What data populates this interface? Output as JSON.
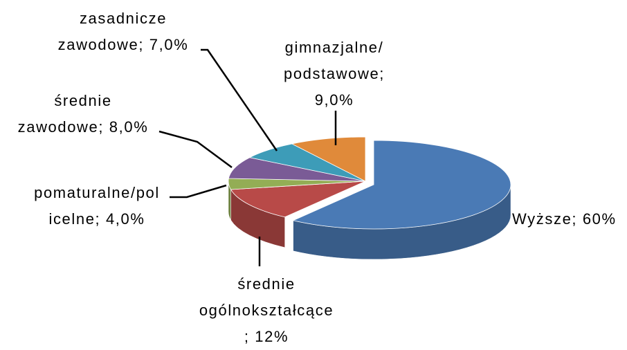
{
  "chart_data": {
    "type": "pie3d",
    "values": [
      60,
      12,
      4,
      8,
      7,
      9
    ],
    "value_labels": [
      "Wyższe; 60%",
      "średnie\nogólnokształcące\n; 12%",
      "pomaturalne/pol\nicelne; 4,0%",
      "średnie\nzawodowe; 8,0%",
      "zasadnicze\nzawodowe; 7,0%",
      "gimnazjalne/\npodstawowe;\n9,0%"
    ],
    "colors": [
      "#4a7ab5",
      "#b84a48",
      "#93ad55",
      "#7a5b96",
      "#3d9cb8",
      "#e08a3a"
    ]
  }
}
